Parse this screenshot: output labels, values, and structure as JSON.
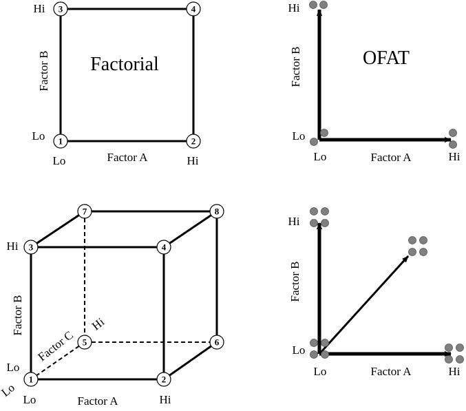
{
  "factorial": {
    "title": "Factorial",
    "x_label": "Factor A",
    "y_label": "Factor B",
    "lo_x": "Lo",
    "hi_x": "Hi",
    "lo_y": "Lo",
    "hi_y": "Hi",
    "nodes": [
      "1",
      "2",
      "3",
      "4"
    ]
  },
  "ofat_top": {
    "title": "OFAT",
    "x_label": "Factor A",
    "y_label": "Factor B",
    "lo_x": "Lo",
    "hi_x": "Hi",
    "lo_y": "Lo",
    "hi_y": "Hi"
  },
  "cube": {
    "x_label": "Factor A",
    "y_label": "Factor B",
    "z_label": "Factor C",
    "lo_x": "Lo",
    "hi_x": "Hi",
    "lo_y": "Lo",
    "hi_y": "Hi",
    "lo_z": "Lo",
    "hi_z": "Hi",
    "nodes": [
      "1",
      "2",
      "3",
      "4",
      "5",
      "6",
      "7",
      "8"
    ]
  },
  "ofat_bottom": {
    "x_label": "Factor A",
    "y_label": "Factor B",
    "lo_x": "Lo",
    "hi_x": "Hi",
    "lo_y": "Lo",
    "hi_y": "Hi"
  },
  "colors": {
    "line": "#000000",
    "dot": "#808080",
    "node_fill": "#ffffff"
  }
}
